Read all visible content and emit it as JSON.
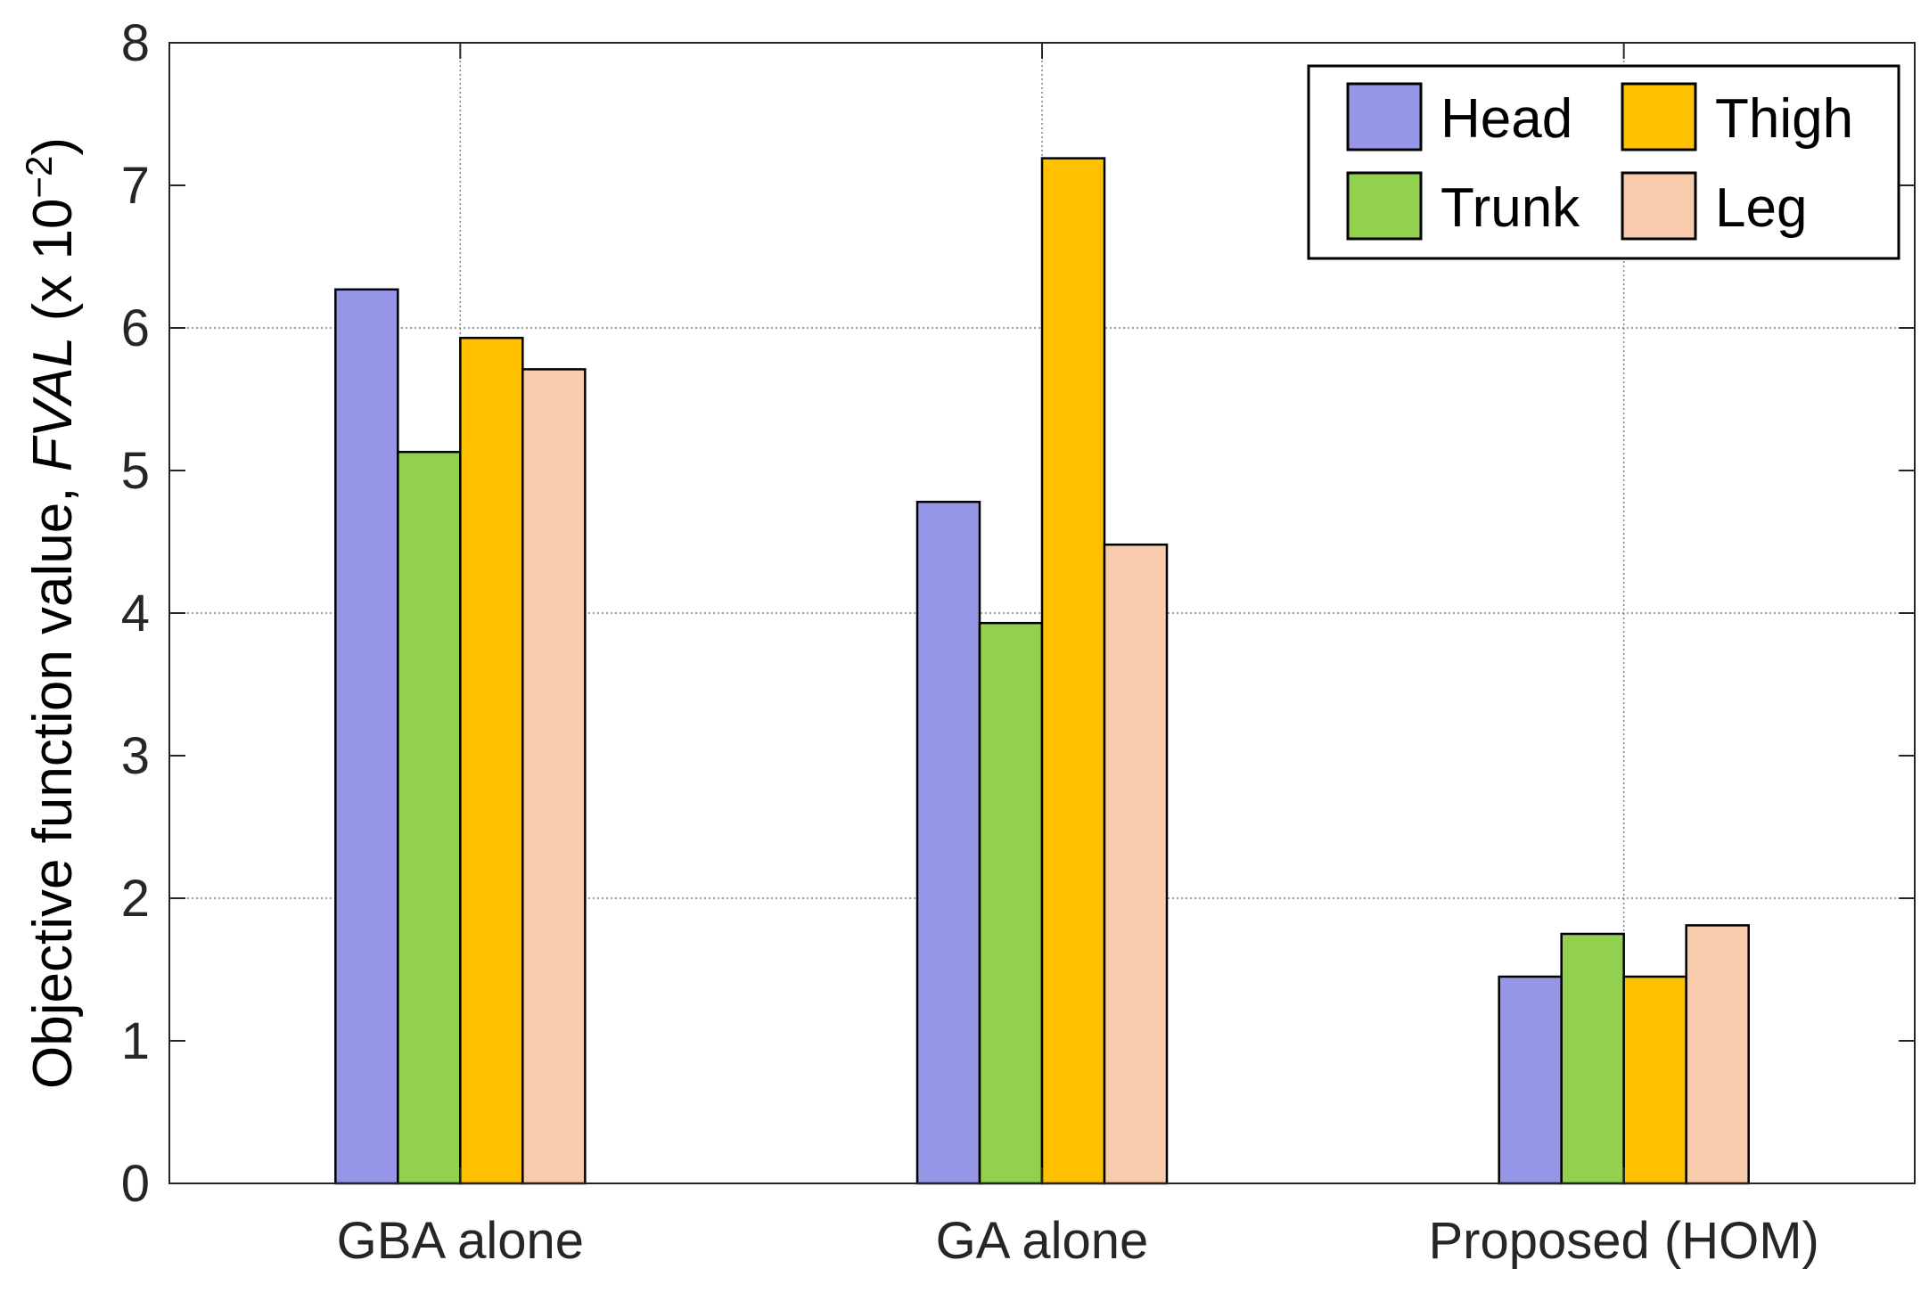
{
  "chart_data": {
    "type": "bar",
    "title": "",
    "xlabel": "",
    "ylabel": {
      "prefix": "Objective function value, ",
      "italic": "FVAL",
      "suffix_start": " (x 10",
      "superscript": "−2",
      "suffix_end": ")"
    },
    "categories": [
      "GBA alone",
      "GA alone",
      "Proposed (HOM)"
    ],
    "series": [
      {
        "name": "Head",
        "color": "#9696E6",
        "values": [
          6.27,
          4.78,
          1.45
        ]
      },
      {
        "name": "Trunk",
        "color": "#92D050",
        "values": [
          5.13,
          3.93,
          1.75
        ]
      },
      {
        "name": "Thigh",
        "color": "#FFC000",
        "values": [
          5.93,
          7.19,
          1.45
        ]
      },
      {
        "name": "Leg",
        "color": "#F8CBAD",
        "values": [
          5.71,
          4.48,
          1.81
        ]
      }
    ],
    "ylim": [
      0,
      8
    ],
    "yticks": [
      "0",
      "1",
      "2",
      "3",
      "4",
      "5",
      "6",
      "7",
      "8"
    ],
    "grid": "dotted, y at 2/4/6/8 and x at category centers",
    "legend_position": "top-right"
  }
}
